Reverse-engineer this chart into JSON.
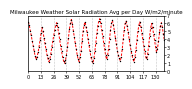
{
  "title": "Milwaukee Weather Solar Radiation Avg per Day W/m2/minute",
  "y_values": [
    6.2,
    5.8,
    5.1,
    4.5,
    3.8,
    3.2,
    2.5,
    1.9,
    1.5,
    1.8,
    2.4,
    3.1,
    3.9,
    4.8,
    5.5,
    5.0,
    4.2,
    3.5,
    2.8,
    2.1,
    1.6,
    1.2,
    1.5,
    2.2,
    3.0,
    3.8,
    4.5,
    5.2,
    5.8,
    6.1,
    5.5,
    4.8,
    4.0,
    3.2,
    2.5,
    1.8,
    1.3,
    1.0,
    1.4,
    2.1,
    3.0,
    4.2,
    5.3,
    6.0,
    6.5,
    5.9,
    5.1,
    4.3,
    3.5,
    2.8,
    2.0,
    1.5,
    1.2,
    1.8,
    2.6,
    3.8,
    5.0,
    5.8,
    6.2,
    5.6,
    4.9,
    4.1,
    3.3,
    2.5,
    1.8,
    1.3,
    1.0,
    1.6,
    2.5,
    3.6,
    4.8,
    5.7,
    6.3,
    6.6,
    6.0,
    5.2,
    4.4,
    3.6,
    2.8,
    2.0,
    1.5,
    2.0,
    2.8,
    4.0,
    5.2,
    6.0,
    6.4,
    5.8,
    5.0,
    4.2,
    3.4,
    2.6,
    2.0,
    1.6,
    1.3,
    1.8,
    2.8,
    4.0,
    5.2,
    6.0,
    6.3,
    5.7,
    4.9,
    4.1,
    3.3,
    2.6,
    2.0,
    1.5,
    1.2,
    1.8,
    2.7,
    3.9,
    5.0,
    5.8,
    6.2,
    5.6,
    4.8,
    4.0,
    3.2,
    2.5,
    1.8,
    1.5,
    2.2,
    3.2,
    4.4,
    5.4,
    6.0,
    5.5,
    4.7,
    3.9,
    3.1,
    2.4,
    2.8,
    3.8,
    4.9,
    5.7,
    6.1,
    5.5,
    4.7,
    3.9
  ],
  "line_color": "#ff0000",
  "dot_color": "#000000",
  "grid_color": "#888888",
  "bg_color": "#ffffff",
  "ylim": [
    0,
    7
  ],
  "yticks": [
    0,
    1,
    2,
    3,
    4,
    5,
    6,
    7
  ],
  "ylabel_fontsize": 3.5,
  "title_fontsize": 4.0,
  "line_width": 0.7,
  "dot_size": 1.0,
  "vline_interval": 13,
  "n_points": 140
}
